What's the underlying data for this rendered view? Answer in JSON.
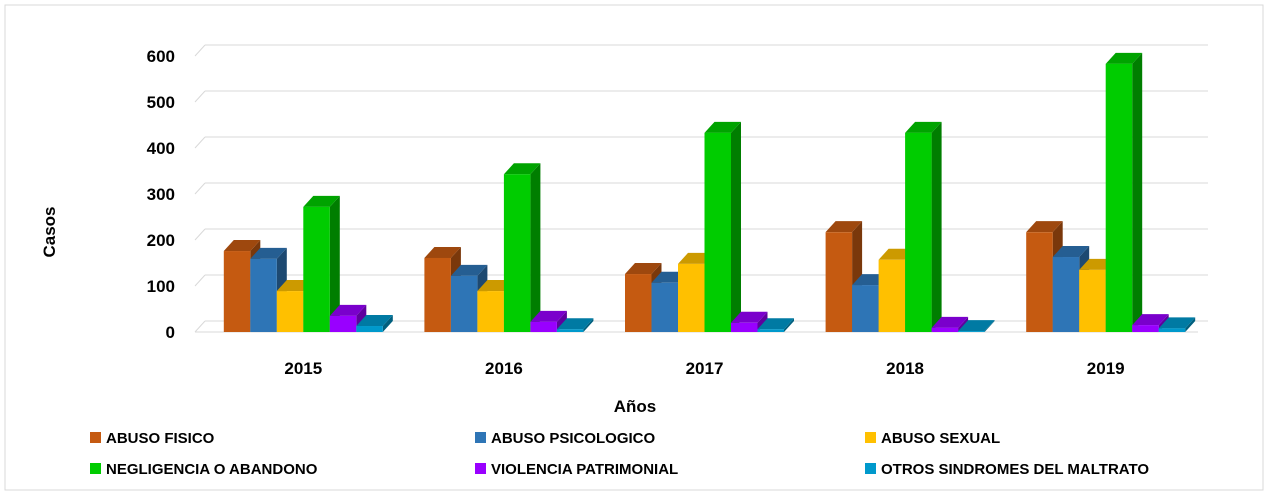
{
  "chart_data": {
    "type": "bar3d",
    "x_label": "Años",
    "y_label": "Casos",
    "categories": [
      "2015",
      "2016",
      "2017",
      "2018",
      "2019"
    ],
    "series": [
      {
        "name": "ABUSO FISICO",
        "color": "#c55a11",
        "values": [
          176,
          161,
          126,
          217,
          217
        ]
      },
      {
        "name": "ABUSO PSICOLOGICO",
        "color": "#2e75b6",
        "values": [
          159,
          122,
          107,
          102,
          163
        ]
      },
      {
        "name": "ABUSO SEXUAL",
        "color": "#ffc000",
        "values": [
          89,
          89,
          148,
          157,
          135
        ]
      },
      {
        "name": "NEGLIGENCIA O ABANDONO",
        "color": "#00cc00",
        "values": [
          272,
          343,
          433,
          433,
          583
        ]
      },
      {
        "name": "VIOLENCIA PATRIMONIAL",
        "color": "#9900ff",
        "values": [
          35,
          22,
          20,
          9,
          15
        ]
      },
      {
        "name": "OTROS SINDROMES DEL MALTRATO",
        "color": "#0099cc",
        "values": [
          13,
          6,
          6,
          2,
          8
        ]
      }
    ],
    "ylim": [
      0,
      600
    ],
    "yticks": [
      0,
      100,
      200,
      300,
      400,
      500,
      600
    ],
    "grid": true
  }
}
